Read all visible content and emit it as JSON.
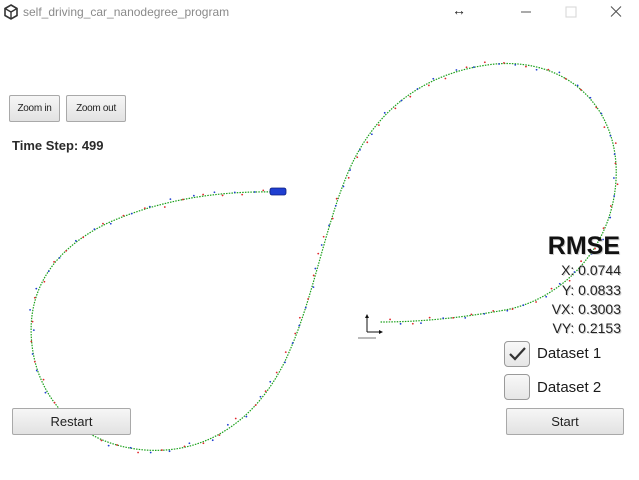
{
  "window": {
    "title": "self_driving_car_nanodegree_program",
    "icons": [
      "unity-icon",
      "resize-arrows-icon",
      "minimize-icon",
      "maximize-icon",
      "close-icon"
    ]
  },
  "controls": {
    "zoom_in": "Zoom in",
    "zoom_out": "Zoom out",
    "restart": "Restart",
    "start": "Start"
  },
  "status": {
    "time_step": "Time Step: 499"
  },
  "rmse": {
    "title": "RMSE",
    "x": "X: 0.0744",
    "y": "Y: 0.0833",
    "vx": "VX: 0.3003",
    "vy": "VY: 0.2153"
  },
  "datasets": [
    {
      "label": "Dataset 1",
      "checked": true
    },
    {
      "label": "Dataset 2",
      "checked": false
    }
  ],
  "colors": {
    "path": "#1aa01a",
    "car": "#1f3fd1",
    "lidar": "#e0262b",
    "radar": "#1f3fd1"
  }
}
